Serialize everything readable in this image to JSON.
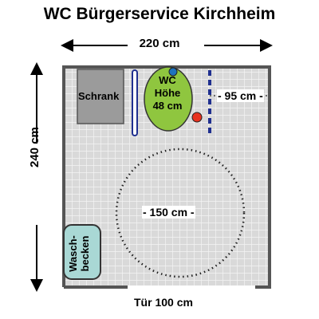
{
  "title": "WC Bürgerservice Kirchheim",
  "dimensions": {
    "width": "220 cm",
    "height": "240 cm",
    "door": "Tür 100 cm",
    "toilet_side_clearance": "- 95 cm -",
    "turning_circle": "- 150 cm -"
  },
  "fixtures": {
    "schrank": "Schrank",
    "wc_lines": [
      "WC",
      "Höhe",
      "48 cm"
    ],
    "waschbecken_lines": [
      "Wasch-",
      "becken"
    ]
  },
  "colors": {
    "floor": "#d9d9d9",
    "grid": "#f2f2f2",
    "wall": "#555555",
    "schrank": "#9b9b9b",
    "wc": "#8fc63f",
    "waschbecken": "#a9d8d5",
    "grab_bar": "#1f2f8f",
    "flush_button_blue": "#1e73be",
    "flush_button_red": "#e8321f"
  }
}
